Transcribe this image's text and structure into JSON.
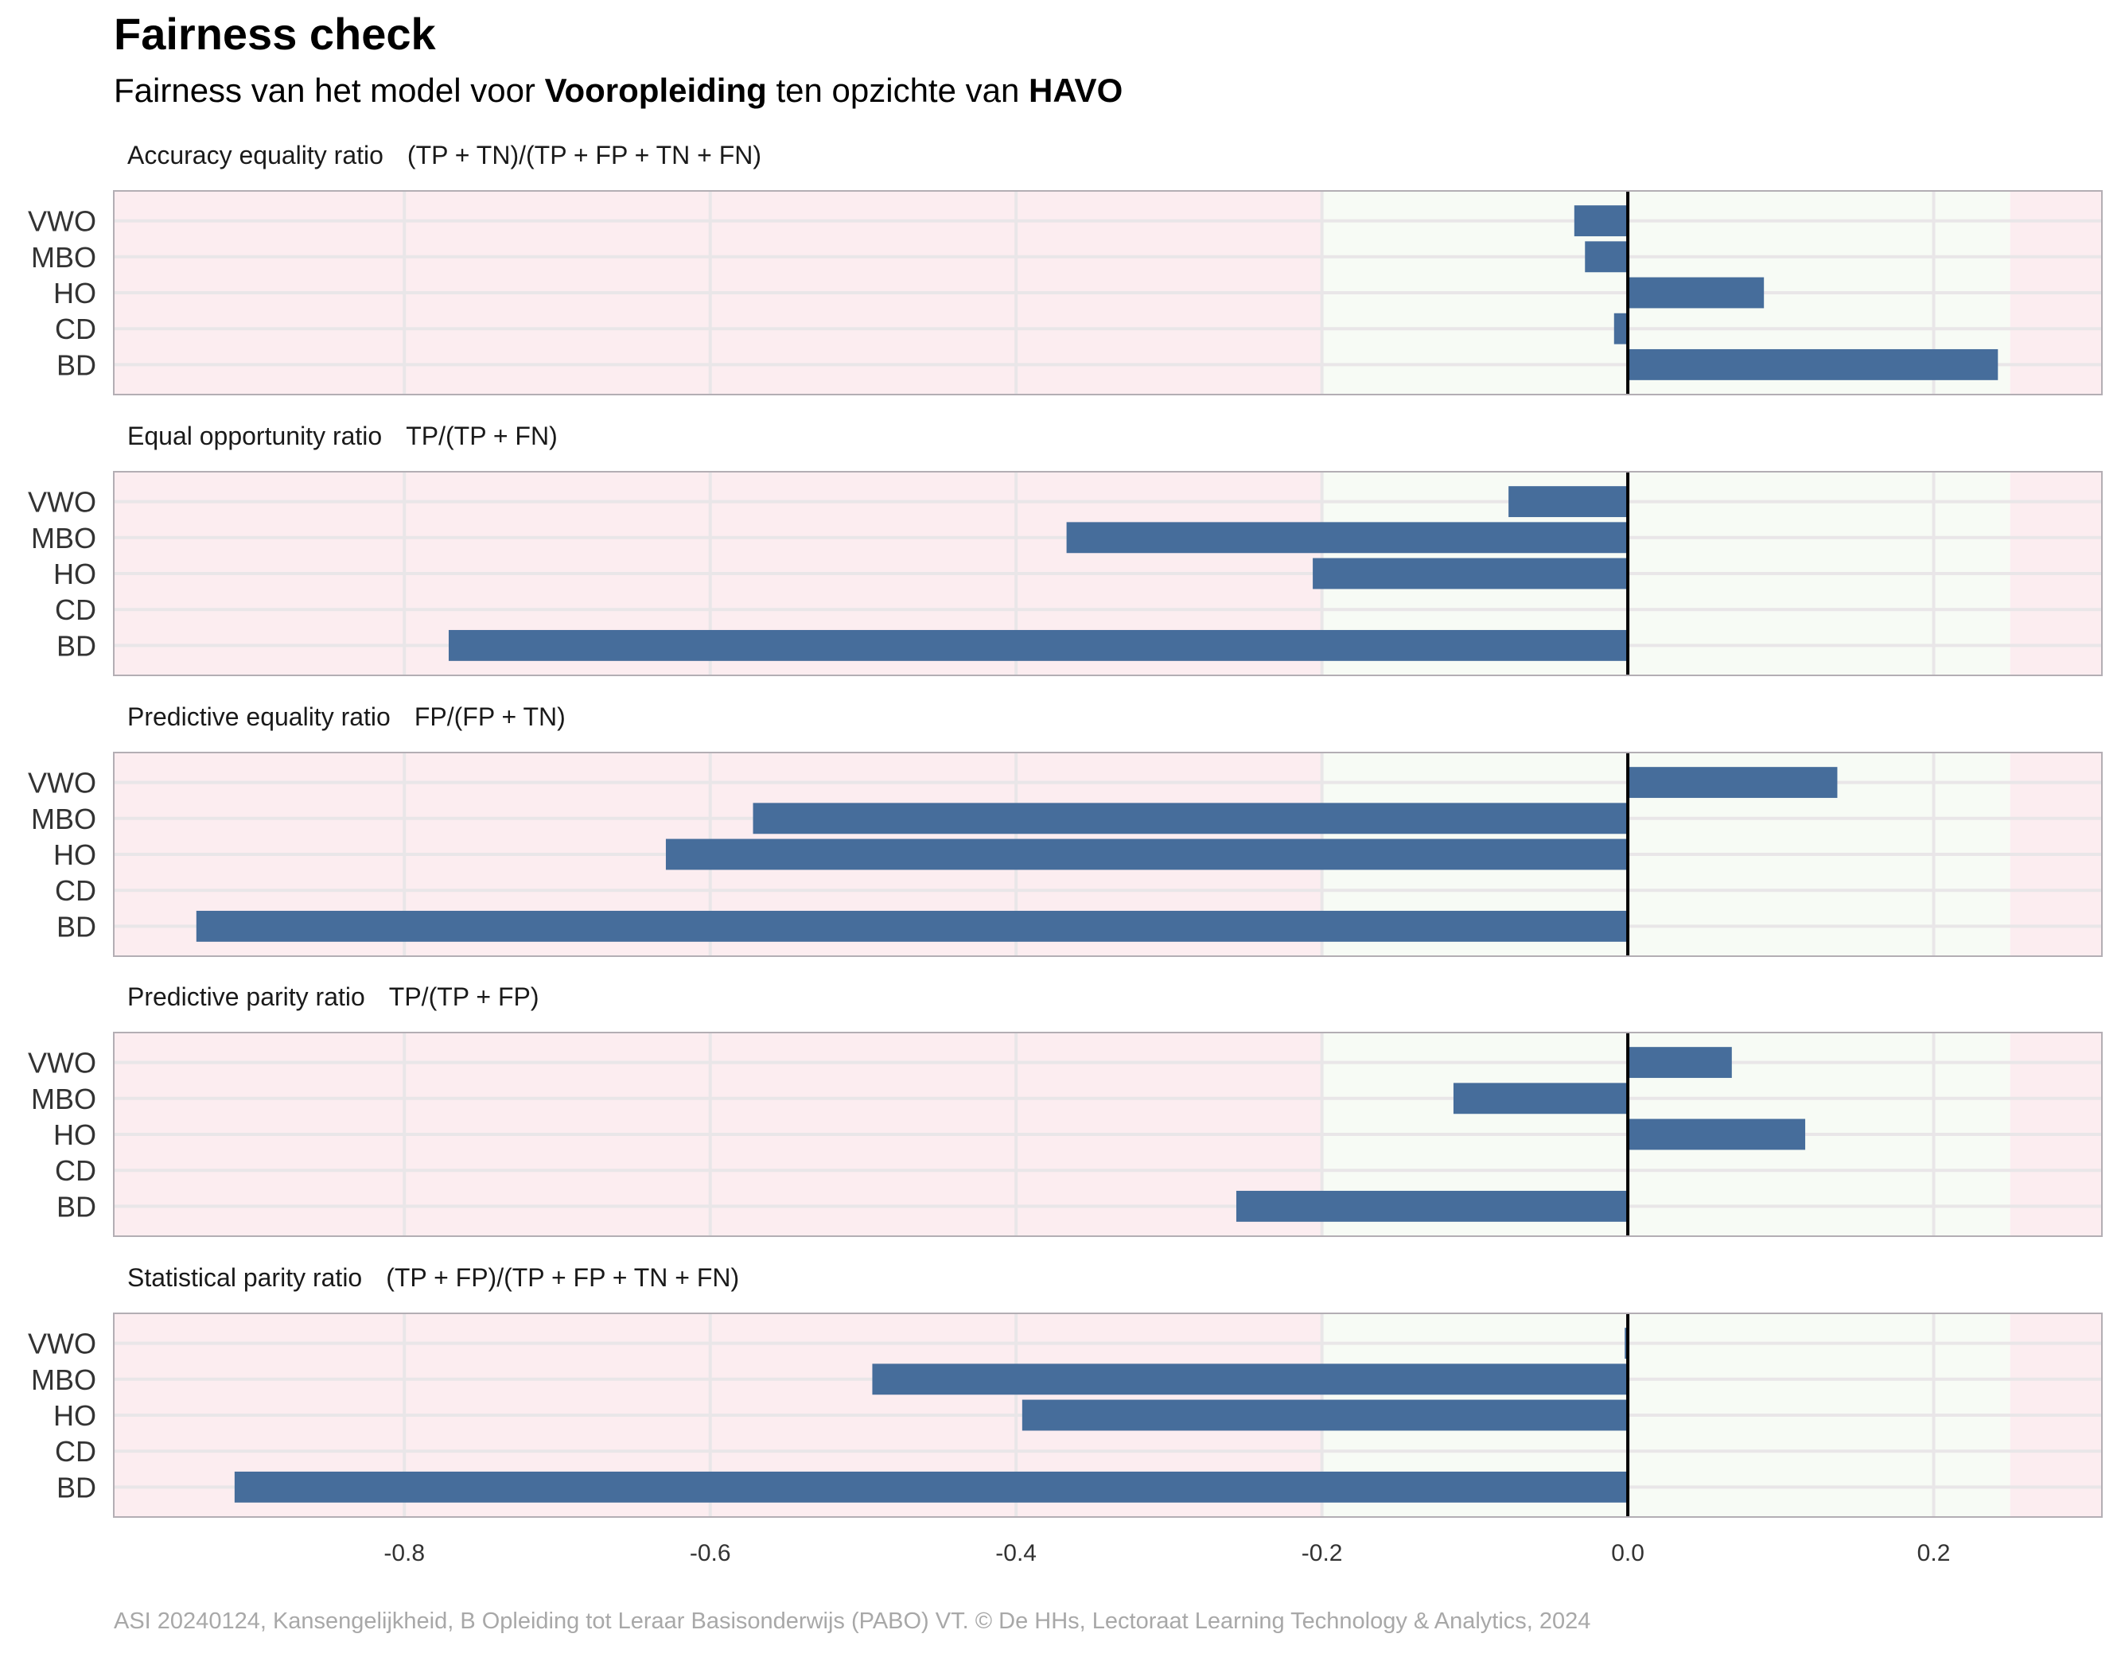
{
  "header": {
    "title": "Fairness check",
    "subtitle_prefix": "Fairness van het model voor ",
    "subtitle_var": "Vooropleiding",
    "subtitle_mid": " ten opzichte van ",
    "subtitle_ref": "HAVO"
  },
  "caption": "ASI 20240124, Kansengelijkheid, B Opleiding tot Leraar Basisonderwijs (PABO) VT. © De HHs, Lectoraat Learning Technology & Analytics, 2024",
  "colors": {
    "bar": "#466d9b",
    "unfair_zone": "#fcedf0",
    "fair_zone": "#f7fbf5",
    "zero_line": "#000000",
    "panel_border": "#b3aeb4"
  },
  "chart_data": {
    "type": "bar",
    "orientation": "horizontal",
    "categories": [
      "VWO",
      "MBO",
      "HO",
      "CD",
      "BD"
    ],
    "xlim": [
      -0.99,
      0.31
    ],
    "x_ticks": [
      -0.8,
      -0.6,
      -0.4,
      -0.2,
      0.0,
      0.2
    ],
    "x_tick_labels": [
      "-0.8",
      "-0.6",
      "-0.4",
      "-0.2",
      "0.0",
      "0.2"
    ],
    "fair_range": [
      -0.2,
      0.25
    ],
    "grid": true,
    "panels": [
      {
        "metric": "Accuracy equality ratio",
        "formula": "(TP + TN)/(TP + FP + TN + FN)",
        "values": [
          -0.035,
          -0.028,
          0.089,
          -0.009,
          0.242
        ]
      },
      {
        "metric": "Equal opportunity ratio",
        "formula": "TP/(TP + FN)",
        "values": [
          -0.078,
          -0.367,
          -0.206,
          0,
          -0.771
        ]
      },
      {
        "metric": "Predictive equality ratio",
        "formula": "FP/(FP + TN)",
        "values": [
          0.137,
          -0.572,
          -0.629,
          0,
          -0.936
        ]
      },
      {
        "metric": "Predictive parity ratio",
        "formula": "TP/(TP + FP)",
        "values": [
          0.068,
          -0.114,
          0.116,
          0,
          -0.256
        ]
      },
      {
        "metric": "Statistical parity ratio",
        "formula": "(TP + FP)/(TP + FP + TN + FN)",
        "values": [
          -0.002,
          -0.494,
          -0.396,
          0,
          -0.911
        ]
      }
    ]
  }
}
